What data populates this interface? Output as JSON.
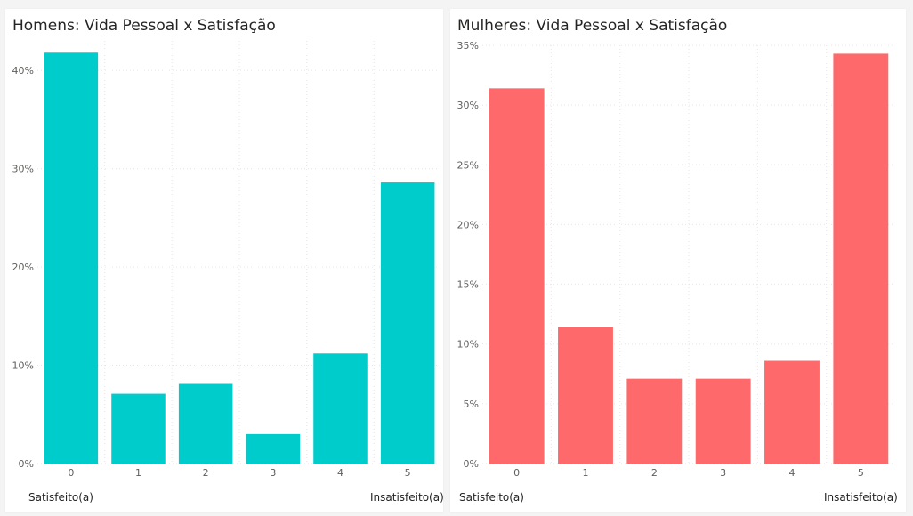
{
  "charts": [
    {
      "title": "Homens: Vida Pessoal x Satisfação",
      "left_note": "Satisfeito(a)",
      "right_note": "Insatisfeito(a)"
    },
    {
      "title": "Mulheres: Vida Pessoal x Satisfação",
      "left_note": "Satisfeito(a)",
      "right_note": "Insatisfeito(a)"
    }
  ],
  "chart_data": [
    {
      "type": "bar",
      "title": "Homens: Vida Pessoal x Satisfação",
      "categories": [
        "0",
        "1",
        "2",
        "3",
        "4",
        "5"
      ],
      "values": [
        41.8,
        7.1,
        8.1,
        3.0,
        11.2,
        28.6
      ],
      "ylim": [
        0,
        43
      ],
      "yticks": [
        0,
        10,
        20,
        30,
        40
      ],
      "ytick_labels": [
        "0%",
        "10%",
        "20%",
        "30%",
        "40%"
      ],
      "xlabel": "",
      "ylabel": "",
      "color": "#01CCCC",
      "grid": true
    },
    {
      "type": "bar",
      "title": "Mulheres: Vida Pessoal x Satisfação",
      "categories": [
        "0",
        "1",
        "2",
        "3",
        "4",
        "5"
      ],
      "values": [
        31.4,
        11.4,
        7.1,
        7.1,
        8.6,
        34.3
      ],
      "ylim": [
        0,
        35
      ],
      "yticks": [
        0,
        5,
        10,
        15,
        20,
        25,
        30,
        35
      ],
      "ytick_labels": [
        "0%",
        "5%",
        "10%",
        "15%",
        "20%",
        "25%",
        "30%",
        "35%"
      ],
      "xlabel": "",
      "ylabel": "",
      "color": "#FE6A6B",
      "grid": true
    }
  ]
}
